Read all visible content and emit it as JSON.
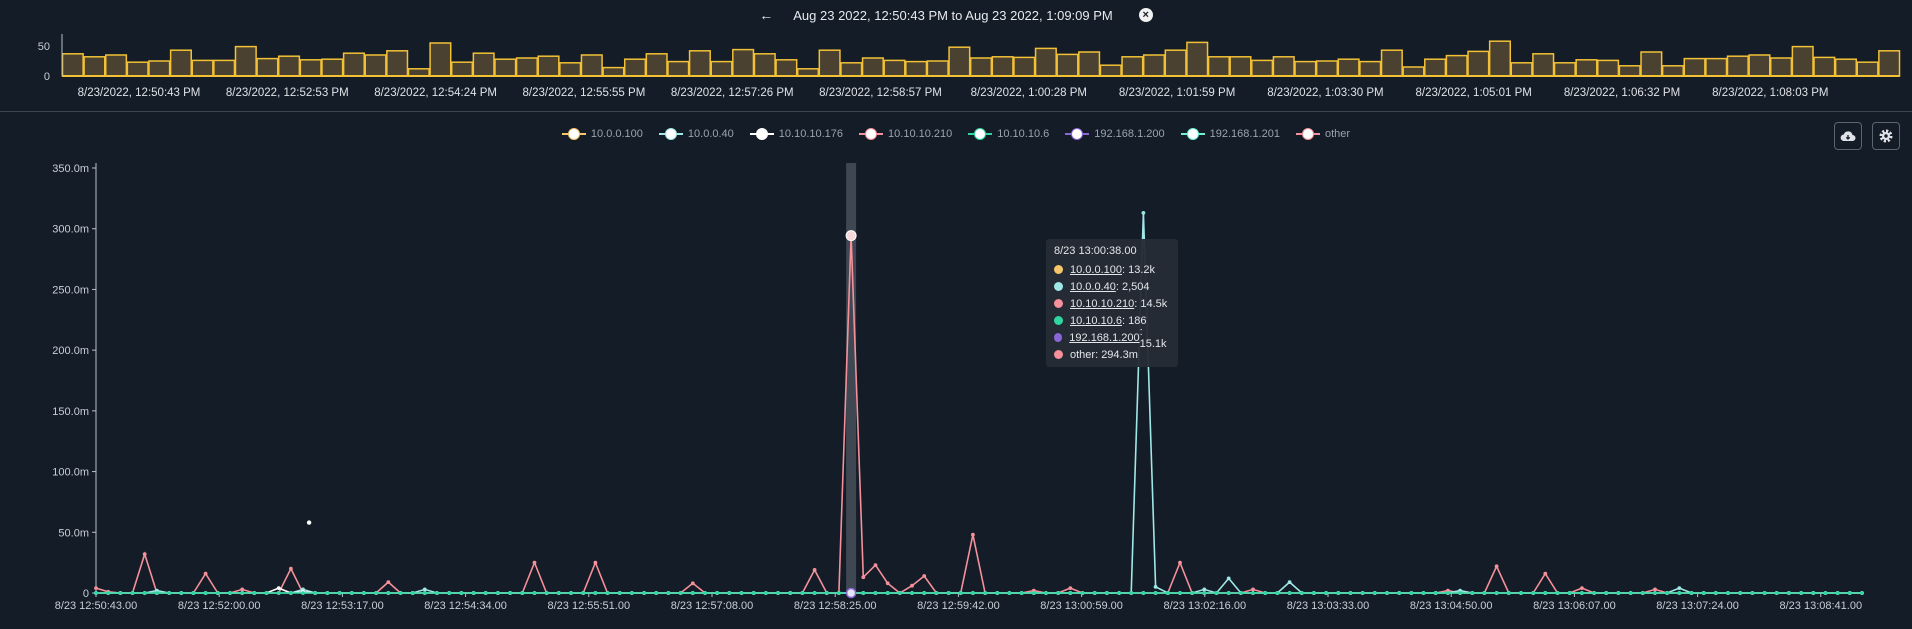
{
  "header": {
    "range_text": "Aug 23 2022, 12:50:43 PM to Aug 23 2022, 1:09:09 PM",
    "back_icon": "←",
    "close_icon": "×"
  },
  "toolbar": {
    "download_icon": "cloud-download-icon",
    "settings_icon": "gear-icon"
  },
  "colors": {
    "background": "#141c27",
    "brush_bar": "#f2c136",
    "brush_fill": "#4a4130",
    "axis": "#b9c0ca"
  },
  "legend": [
    {
      "label": "10.0.0.100",
      "color": "#f7c66a"
    },
    {
      "label": "10.0.0.40",
      "color": "#9fe8e6"
    },
    {
      "label": "10.10.10.176",
      "color": "#ffffff"
    },
    {
      "label": "10.10.10.210",
      "color": "#f5919a"
    },
    {
      "label": "10.10.10.6",
      "color": "#2fd6a0"
    },
    {
      "label": "192.168.1.200",
      "color": "#8a66d8"
    },
    {
      "label": "192.168.1.201",
      "color": "#6ff0d6"
    },
    {
      "label": "other",
      "color": "#f5919a"
    }
  ],
  "tooltip": {
    "title": "8/23 13:00:38.00",
    "rows": [
      {
        "label": "10.0.0.100",
        "value": ": 13.2k",
        "color": "#f7c66a",
        "underline": true
      },
      {
        "label": "10.0.0.40",
        "value": ": 2,504",
        "color": "#9fe8e6",
        "underline": true
      },
      {
        "label": "10.10.10.210",
        "value": ": 14.5k",
        "color": "#f5919a",
        "underline": true
      },
      {
        "label": "10.10.10.6",
        "value": ": 186",
        "color": "#2fd6a0",
        "underline": true
      },
      {
        "label": "192.168.1.200",
        "value": ": 15.1k",
        "color": "#8a66d8",
        "underline": true
      },
      {
        "label": "other",
        "value": ": 294.3m",
        "color": "#f5919a",
        "underline": false
      }
    ]
  },
  "chart_data": [
    {
      "type": "bar",
      "name": "histogram-brush",
      "ytick_labels": [
        "50",
        "0"
      ],
      "ylim": [
        0,
        70
      ],
      "xtick_labels": [
        "8/23/2022, 12:50:43 PM",
        "8/23/2022, 12:52:53 PM",
        "8/23/2022, 12:54:24 PM",
        "8/23/2022, 12:55:55 PM",
        "8/23/2022, 12:57:26 PM",
        "8/23/2022, 12:58:57 PM",
        "8/23/2022, 1:00:28 PM",
        "8/23/2022, 1:01:59 PM",
        "8/23/2022, 1:03:30 PM",
        "8/23/2022, 1:05:01 PM",
        "8/23/2022, 1:06:32 PM",
        "8/23/2022, 1:08:03 PM"
      ],
      "values": [
        37,
        32,
        35,
        23,
        25,
        43,
        26,
        26,
        49,
        29,
        33,
        27,
        28,
        38,
        35,
        42,
        12,
        55,
        23,
        38,
        28,
        30,
        33,
        22,
        35,
        14,
        28,
        37,
        24,
        42,
        24,
        44,
        37,
        27,
        12,
        43,
        22,
        30,
        26,
        24,
        25,
        48,
        30,
        32,
        31,
        46,
        36,
        40,
        18,
        32,
        35,
        43,
        56,
        32,
        32,
        26,
        32,
        24,
        25,
        28,
        24,
        43,
        15,
        28,
        34,
        41,
        58,
        22,
        37,
        22,
        27,
        26,
        17,
        40,
        17,
        29,
        29,
        33,
        35,
        30,
        49,
        31,
        28,
        23,
        42
      ],
      "grid": false
    },
    {
      "type": "line",
      "name": "main-timeseries",
      "ylabel": "",
      "ylim": [
        0,
        350
      ],
      "ytick_labels": [
        "350.0m",
        "300.0m",
        "250.0m",
        "200.0m",
        "150.0m",
        "100.0m",
        "50.0m",
        "0"
      ],
      "xtick_labels": [
        "8/23 12:50:43.00",
        "8/23 12:52:00.00",
        "8/23 12:53:17.00",
        "8/23 12:54:34.00",
        "8/23 12:55:51.00",
        "8/23 12:57:08.00",
        "8/23 12:58:25.00",
        "8/23 12:59:42.00",
        "8/23 13:00:59.00",
        "8/23 13:02:16.00",
        "8/23 13:03:33.00",
        "8/23 13:04:50.00",
        "8/23 13:06:07.00",
        "8/23 13:07:24.00",
        "8/23 13:08:41.00"
      ],
      "grid": false,
      "point_count": 146,
      "series": [
        {
          "name": "other",
          "color": "#f5919a",
          "spikes": [
            [
              0,
              4
            ],
            [
              1,
              1
            ],
            [
              4,
              32
            ],
            [
              9,
              16
            ],
            [
              12,
              3
            ],
            [
              16,
              20
            ],
            [
              24,
              9
            ],
            [
              36,
              25
            ],
            [
              41,
              25
            ],
            [
              49,
              8
            ],
            [
              59,
              19
            ],
            [
              62,
              294.3
            ],
            [
              63,
              13
            ],
            [
              64,
              23
            ],
            [
              65,
              8
            ],
            [
              67,
              6
            ],
            [
              68,
              14
            ],
            [
              72,
              48
            ],
            [
              77,
              2
            ],
            [
              80,
              4
            ],
            [
              89,
              25
            ],
            [
              95,
              3
            ],
            [
              111,
              2
            ],
            [
              115,
              22
            ],
            [
              119,
              16
            ],
            [
              122,
              4
            ],
            [
              128,
              3
            ]
          ]
        },
        {
          "name": "10.0.0.40",
          "color": "#9fe8e6",
          "spikes": [
            [
              5,
              2
            ],
            [
              17,
              3
            ],
            [
              27,
              3
            ],
            [
              86,
              313
            ],
            [
              87,
              5
            ],
            [
              91,
              3
            ],
            [
              93,
              12
            ],
            [
              98,
              9
            ],
            [
              112,
              2
            ],
            [
              130,
              4
            ]
          ]
        },
        {
          "name": "10.10.10.176",
          "color": "#ffffff",
          "spikes": [
            [
              15,
              4
            ],
            [
              17,
              1
            ]
          ],
          "extra_point": [
            17.5,
            58
          ]
        },
        {
          "name": "10.10.10.6",
          "color": "#2fd6a0",
          "spikes": []
        }
      ],
      "highlight_index": 62
    }
  ]
}
